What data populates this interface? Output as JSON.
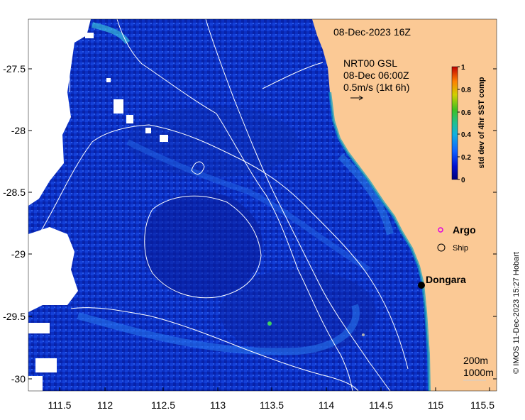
{
  "title": "08-Dec-2023 16Z",
  "current_info": {
    "source": "NRT00 GSL",
    "time": "08-Dec 06:00Z",
    "scale": "0.5m/s (1kt 6h)"
  },
  "colorbar": {
    "label": "std dev of 4hr SST comp",
    "ticks": [
      "0",
      "0.2",
      "0.4",
      "0.6",
      "0.8",
      "1"
    ]
  },
  "legend": {
    "argo": "Argo",
    "ship": "Ship"
  },
  "places": {
    "dongara": "Dongara"
  },
  "contours": {
    "c200": "200m",
    "c1000": "1000m"
  },
  "axes": {
    "x_ticks": [
      "111.5",
      "112",
      "112.5",
      "113",
      "113.5",
      "114",
      "114.5",
      "115",
      "115.5"
    ],
    "y_ticks": [
      "-27.5",
      "-28",
      "-28.5",
      "-29",
      "-29.5",
      "-30"
    ]
  },
  "credit": "© IMOS 11-Dec-2023 15:27 Hobart",
  "colors": {
    "land": "#fbc995",
    "ocean_deep": "#1a24b0",
    "ocean_mid": "#0a2fc8",
    "argo": "#e000e0"
  }
}
